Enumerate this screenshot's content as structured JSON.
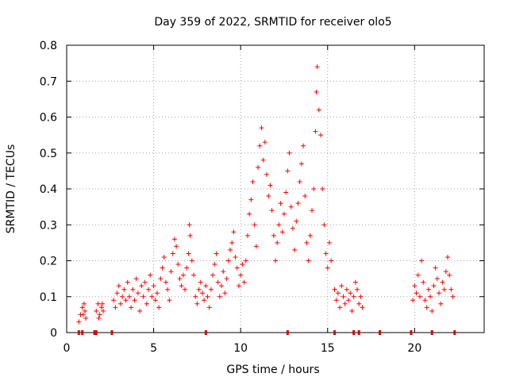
{
  "chart_data": {
    "type": "scatter",
    "title": "Day 359 of 2022, SRMTID for receiver olo5",
    "xlabel": "GPS time / hours",
    "ylabel": "SRMTID / TECUs",
    "xlim": [
      0,
      24
    ],
    "ylim": [
      0,
      0.8
    ],
    "xticks": [
      0,
      5,
      10,
      15,
      20
    ],
    "yticks": [
      0,
      0.1,
      0.2,
      0.3,
      0.4,
      0.5,
      0.6,
      0.7,
      0.8
    ],
    "xtick_labels": [
      "0",
      "5",
      "10",
      "15",
      "20"
    ],
    "ytick_labels": [
      "0",
      "0.1",
      "0.2",
      "0.3",
      "0.4",
      "0.5",
      "0.6",
      "0.7",
      "0.8"
    ],
    "grid": true,
    "marker": "plus",
    "color": "#ff0000",
    "series": [
      {
        "name": "SRMTID",
        "points": [
          [
            0.7,
            0.03
          ],
          [
            0.8,
            0.05
          ],
          [
            0.9,
            0.07
          ],
          [
            1.0,
            0.08
          ],
          [
            1.05,
            0.06
          ],
          [
            1.1,
            0.04
          ],
          [
            0.95,
            0.05
          ],
          [
            1.7,
            0.06
          ],
          [
            1.8,
            0.08
          ],
          [
            1.9,
            0.05
          ],
          [
            2.0,
            0.07
          ],
          [
            2.1,
            0.06
          ],
          [
            1.85,
            0.04
          ],
          [
            2.05,
            0.08
          ],
          [
            2.7,
            0.09
          ],
          [
            2.8,
            0.07
          ],
          [
            2.9,
            0.11
          ],
          [
            3.0,
            0.13
          ],
          [
            3.1,
            0.08
          ],
          [
            3.2,
            0.1
          ],
          [
            3.3,
            0.12
          ],
          [
            3.4,
            0.09
          ],
          [
            3.5,
            0.14
          ],
          [
            3.6,
            0.1
          ],
          [
            3.7,
            0.07
          ],
          [
            3.8,
            0.12
          ],
          [
            3.9,
            0.09
          ],
          [
            4.0,
            0.15
          ],
          [
            4.1,
            0.11
          ],
          [
            4.2,
            0.06
          ],
          [
            4.3,
            0.13
          ],
          [
            4.4,
            0.1
          ],
          [
            4.5,
            0.14
          ],
          [
            4.6,
            0.08
          ],
          [
            4.7,
            0.12
          ],
          [
            4.8,
            0.16
          ],
          [
            4.9,
            0.1
          ],
          [
            5.0,
            0.13
          ],
          [
            5.1,
            0.09
          ],
          [
            5.2,
            0.11
          ],
          [
            5.3,
            0.07
          ],
          [
            5.4,
            0.15
          ],
          [
            5.5,
            0.18
          ],
          [
            5.6,
            0.21
          ],
          [
            5.7,
            0.14
          ],
          [
            5.8,
            0.12
          ],
          [
            5.9,
            0.09
          ],
          [
            6.0,
            0.17
          ],
          [
            6.1,
            0.22
          ],
          [
            6.2,
            0.26
          ],
          [
            6.3,
            0.24
          ],
          [
            6.4,
            0.19
          ],
          [
            6.5,
            0.15
          ],
          [
            6.6,
            0.13
          ],
          [
            6.7,
            0.16
          ],
          [
            6.8,
            0.12
          ],
          [
            6.9,
            0.18
          ],
          [
            7.0,
            0.22
          ],
          [
            7.05,
            0.3
          ],
          [
            7.1,
            0.27
          ],
          [
            7.2,
            0.2
          ],
          [
            7.3,
            0.16
          ],
          [
            7.4,
            0.1
          ],
          [
            7.5,
            0.08
          ],
          [
            7.6,
            0.12
          ],
          [
            7.7,
            0.14
          ],
          [
            7.8,
            0.11
          ],
          [
            7.9,
            0.09
          ],
          [
            8.0,
            0.13
          ],
          [
            8.1,
            0.1
          ],
          [
            8.2,
            0.07
          ],
          [
            8.3,
            0.12
          ],
          [
            8.4,
            0.16
          ],
          [
            8.5,
            0.19
          ],
          [
            8.6,
            0.22
          ],
          [
            8.7,
            0.14
          ],
          [
            8.8,
            0.1
          ],
          [
            8.9,
            0.13
          ],
          [
            9.0,
            0.17
          ],
          [
            9.1,
            0.11
          ],
          [
            9.2,
            0.15
          ],
          [
            9.3,
            0.2
          ],
          [
            9.4,
            0.23
          ],
          [
            9.5,
            0.25
          ],
          [
            9.6,
            0.28
          ],
          [
            9.7,
            0.21
          ],
          [
            9.8,
            0.18
          ],
          [
            9.9,
            0.13
          ],
          [
            10.0,
            0.16
          ],
          [
            10.1,
            0.19
          ],
          [
            10.2,
            0.14
          ],
          [
            10.3,
            0.2
          ],
          [
            10.4,
            0.27
          ],
          [
            10.5,
            0.33
          ],
          [
            10.6,
            0.37
          ],
          [
            10.7,
            0.42
          ],
          [
            10.8,
            0.3
          ],
          [
            10.9,
            0.24
          ],
          [
            11.0,
            0.46
          ],
          [
            11.1,
            0.52
          ],
          [
            11.2,
            0.57
          ],
          [
            11.3,
            0.48
          ],
          [
            11.4,
            0.53
          ],
          [
            11.5,
            0.44
          ],
          [
            11.6,
            0.38
          ],
          [
            11.7,
            0.41
          ],
          [
            11.8,
            0.34
          ],
          [
            11.9,
            0.27
          ],
          [
            12.0,
            0.2
          ],
          [
            12.1,
            0.25
          ],
          [
            12.2,
            0.3
          ],
          [
            12.3,
            0.36
          ],
          [
            12.4,
            0.28
          ],
          [
            12.5,
            0.33
          ],
          [
            12.6,
            0.39
          ],
          [
            12.7,
            0.45
          ],
          [
            12.8,
            0.5
          ],
          [
            12.9,
            0.35
          ],
          [
            13.0,
            0.29
          ],
          [
            13.1,
            0.23
          ],
          [
            13.2,
            0.31
          ],
          [
            13.3,
            0.36
          ],
          [
            13.4,
            0.42
          ],
          [
            13.5,
            0.47
          ],
          [
            13.6,
            0.52
          ],
          [
            13.7,
            0.38
          ],
          [
            13.8,
            0.25
          ],
          [
            13.9,
            0.2
          ],
          [
            14.0,
            0.27
          ],
          [
            14.1,
            0.34
          ],
          [
            14.2,
            0.4
          ],
          [
            14.3,
            0.56
          ],
          [
            14.35,
            0.67
          ],
          [
            14.4,
            0.74
          ],
          [
            14.5,
            0.62
          ],
          [
            14.6,
            0.55
          ],
          [
            14.7,
            0.4
          ],
          [
            14.8,
            0.3
          ],
          [
            14.9,
            0.22
          ],
          [
            15.0,
            0.18
          ],
          [
            15.1,
            0.25
          ],
          [
            15.2,
            0.2
          ],
          [
            15.4,
            0.12
          ],
          [
            15.5,
            0.09
          ],
          [
            15.6,
            0.11
          ],
          [
            15.7,
            0.07
          ],
          [
            15.8,
            0.13
          ],
          [
            15.9,
            0.1
          ],
          [
            16.0,
            0.08
          ],
          [
            16.1,
            0.12
          ],
          [
            16.2,
            0.09
          ],
          [
            16.3,
            0.11
          ],
          [
            16.4,
            0.06
          ],
          [
            16.5,
            0.1
          ],
          [
            16.6,
            0.14
          ],
          [
            16.7,
            0.12
          ],
          [
            16.8,
            0.08
          ],
          [
            16.9,
            0.1
          ],
          [
            17.0,
            0.07
          ],
          [
            19.9,
            0.09
          ],
          [
            20.0,
            0.13
          ],
          [
            20.1,
            0.11
          ],
          [
            20.2,
            0.16
          ],
          [
            20.3,
            0.1
          ],
          [
            20.4,
            0.2
          ],
          [
            20.5,
            0.14
          ],
          [
            20.6,
            0.09
          ],
          [
            20.7,
            0.07
          ],
          [
            20.8,
            0.12
          ],
          [
            20.9,
            0.1
          ],
          [
            21.0,
            0.06
          ],
          [
            21.1,
            0.13
          ],
          [
            21.2,
            0.18
          ],
          [
            21.3,
            0.15
          ],
          [
            21.4,
            0.11
          ],
          [
            21.5,
            0.08
          ],
          [
            21.6,
            0.14
          ],
          [
            21.7,
            0.12
          ],
          [
            21.8,
            0.17
          ],
          [
            21.9,
            0.21
          ],
          [
            22.0,
            0.16
          ],
          [
            22.1,
            0.12
          ],
          [
            22.2,
            0.1
          ]
        ]
      }
    ],
    "gap_markers_x": [
      0.7,
      0.9,
      1.6,
      1.7,
      2.6,
      8.0,
      12.7,
      15.4,
      16.5,
      16.8,
      18.0,
      19.8,
      21.0,
      22.3
    ]
  }
}
